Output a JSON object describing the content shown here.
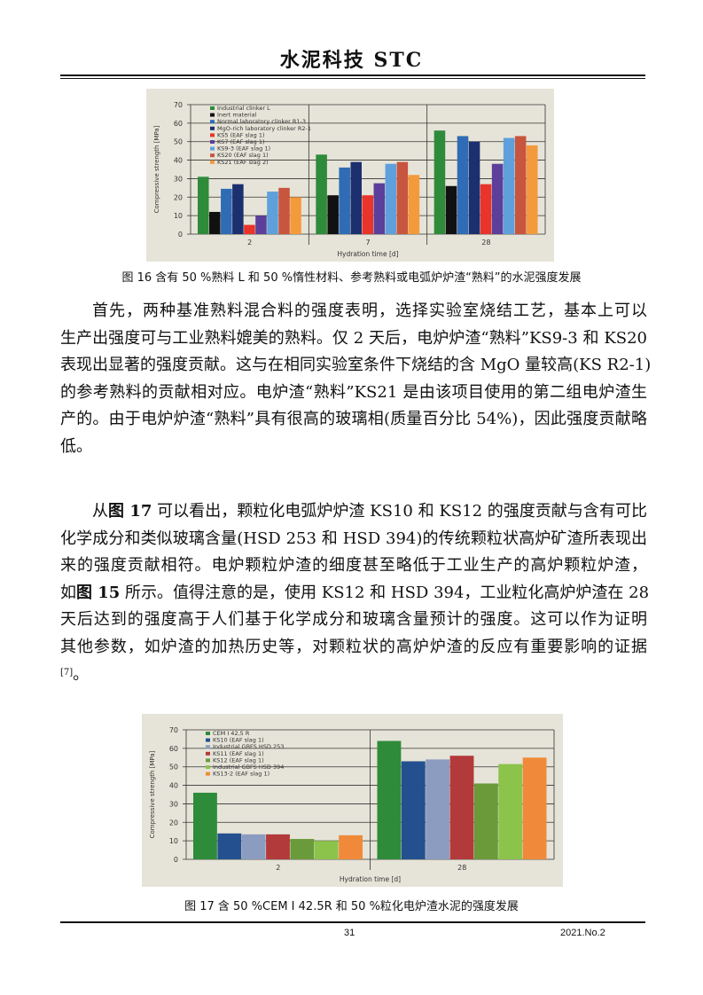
{
  "header": {
    "title": "水泥科技 STC"
  },
  "figure16": {
    "caption": "图 16 含有 50 %熟料 L 和 50 %惰性材料、参考熟料或电弧炉炉渣“熟料”的水泥强度发展"
  },
  "paragraph1": {
    "lines": [
      "首先，两种基准熟料混合料的强度表明，选择实验室烧结工艺，基本上可以",
      "生产出强度可与工业熟料媲美的熟料。仅 2 天后，电炉炉渣“熟料”KS9-3 和 KS20",
      "表现出显著的强度贡献。这与在相同实验室条件下烧结的含 MgO 量较高(KS R2-1)",
      "的参考熟料的贡献相对应。电炉渣“熟料”KS21 是由该项目使用的第二组电炉渣生",
      "产的。由于电炉炉渣“熟料”具有很高的玻璃相(质量百分比 54%)，因此强度贡献略",
      "低。"
    ]
  },
  "paragraph2": {
    "l1a": "从",
    "l1b": "图 17",
    "l1c": " 可以看出，颗粒化电弧炉炉渣 KS10 和 KS12 的强度贡献与含有可比",
    "l2": "化学成分和类似玻璃含量(HSD 253 和 HSD 394)的传统颗粒状高炉矿渣所表现出",
    "l3": "来的强度贡献相符。电炉颗粒炉渣的细度甚至略低于工业生产的高炉颗粒炉渣，",
    "l4a": "如",
    "l4b": "图 15",
    "l4c": " 所示。值得注意的是，使用 KS12 和 HSD 394，工业粒化高炉炉渣在 28",
    "l5": "天后达到的强度高于人们基于化学成分和玻璃含量预计的强度。这可以作为证明",
    "l6": "其他参数，如炉渣的加热历史等，对颗粒状的高炉炉渣的反应有重要影响的证据",
    "ref": "[7]",
    "end": "。"
  },
  "figure17": {
    "caption": "图 17 含 50 %CEM Ⅰ 42.5R 和 50 %粒化电炉渣水泥的强度发展"
  },
  "footer": {
    "page": "31",
    "issue": "2021.No.2"
  },
  "chart_data": [
    {
      "type": "bar",
      "title": "",
      "xlabel": "Hydration time [d]",
      "ylabel": "Compressive strength [MPa]",
      "ylim": [
        0,
        70
      ],
      "yticks": [
        0,
        10,
        20,
        30,
        40,
        50,
        60,
        70
      ],
      "grid": true,
      "legend": "top-left",
      "categories": [
        "2",
        "7",
        "28"
      ],
      "series": [
        {
          "name": "Industrial clinker L",
          "color": "#2e8b3a",
          "values": [
            31,
            43,
            56
          ]
        },
        {
          "name": "Inert material",
          "color": "#111111",
          "values": [
            12,
            21,
            26
          ]
        },
        {
          "name": "Normal laboratory clinker R1-3",
          "color": "#2f6cb5",
          "values": [
            24.5,
            36,
            53
          ]
        },
        {
          "name": "MgO-rich laboratory clinker R2-1",
          "color": "#1c2f6e",
          "values": [
            27,
            39,
            50
          ]
        },
        {
          "name": "KS5 (EAF slag 1)",
          "color": "#e8342a",
          "values": [
            5,
            21,
            27
          ]
        },
        {
          "name": "KS7 (EAF slag 1)",
          "color": "#5b3f9a",
          "values": [
            10,
            27.5,
            38
          ]
        },
        {
          "name": "KS9-3 (EAF slag 1)",
          "color": "#5fa0dc",
          "values": [
            23,
            38,
            52
          ]
        },
        {
          "name": "KS20 (EAF slag 1)",
          "color": "#c8553d",
          "values": [
            25,
            39,
            53
          ]
        },
        {
          "name": "KS21 (EAF slag 2)",
          "color": "#f39a3c",
          "values": [
            20,
            32,
            48
          ]
        }
      ]
    },
    {
      "type": "bar",
      "title": "",
      "xlabel": "Hydration time [d]",
      "ylabel": "Compressive strength [MPa]",
      "ylim": [
        0,
        70
      ],
      "yticks": [
        0,
        10,
        20,
        30,
        40,
        50,
        60,
        70
      ],
      "grid": true,
      "legend": "top-left",
      "categories": [
        "2",
        "28"
      ],
      "series": [
        {
          "name": "CEM I 42,5 R",
          "color": "#2e8b3a",
          "values": [
            36,
            64
          ]
        },
        {
          "name": "KS10 (EAF slag 1)",
          "color": "#24508f",
          "values": [
            14,
            53
          ]
        },
        {
          "name": "Industrial GBFS HSD 253",
          "color": "#8c9cc0",
          "values": [
            13.5,
            54
          ]
        },
        {
          "name": "KS11 (EAF slag 1)",
          "color": "#b33a3a",
          "values": [
            13.5,
            56
          ]
        },
        {
          "name": "KS12 (EAF slag 1)",
          "color": "#6a9a3a",
          "values": [
            11,
            41
          ]
        },
        {
          "name": "Industrial GBFS HSD 394",
          "color": "#8cc34b",
          "values": [
            10,
            51.5
          ]
        },
        {
          "name": "KS13-2 (EAF slag 1)",
          "color": "#f08a3a",
          "values": [
            13,
            55
          ]
        }
      ]
    }
  ]
}
